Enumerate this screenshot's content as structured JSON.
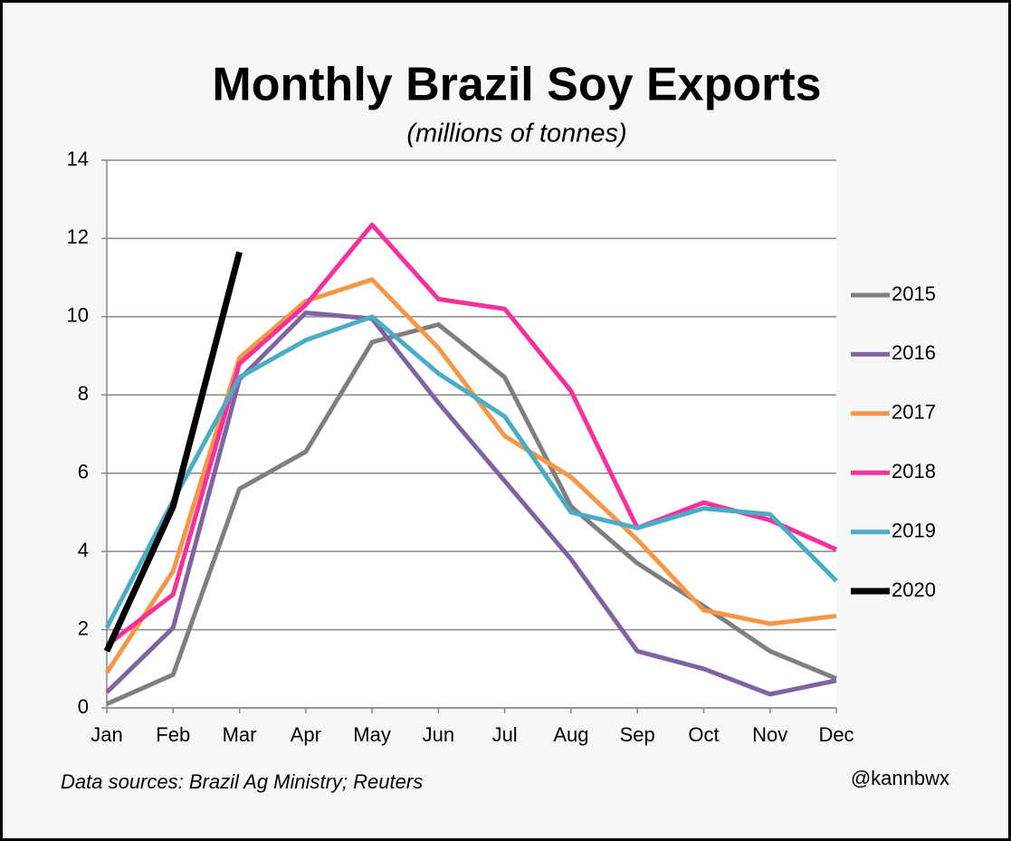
{
  "chart_data": {
    "type": "line",
    "title": "Monthly Brazil Soy Exports",
    "subtitle": "(millions of tonnes)",
    "source": "Data sources: Brazil Ag Ministry; Reuters",
    "credit": "@kannbwx",
    "categories": [
      "Jan",
      "Feb",
      "Mar",
      "Apr",
      "May",
      "Jun",
      "Jul",
      "Aug",
      "Sep",
      "Oct",
      "Nov",
      "Dec"
    ],
    "series": [
      {
        "name": "2015",
        "color": "#7f7f7f",
        "values": [
          0.1,
          0.85,
          5.6,
          6.55,
          9.35,
          9.8,
          8.45,
          5.15,
          3.7,
          2.6,
          1.45,
          0.75
        ]
      },
      {
        "name": "2016",
        "color": "#8064a2",
        "values": [
          0.4,
          2.05,
          8.4,
          10.1,
          9.95,
          7.8,
          5.8,
          3.8,
          1.45,
          1.0,
          0.35,
          0.7
        ]
      },
      {
        "name": "2017",
        "color": "#f79646",
        "values": [
          0.9,
          3.5,
          8.95,
          10.4,
          10.95,
          9.2,
          6.95,
          5.9,
          4.3,
          2.5,
          2.15,
          2.35
        ]
      },
      {
        "name": "2018",
        "color": "#f7319b",
        "values": [
          1.6,
          2.9,
          8.8,
          10.3,
          12.35,
          10.45,
          10.2,
          8.1,
          4.6,
          5.25,
          4.8,
          4.05
        ]
      },
      {
        "name": "2019",
        "color": "#4bacc6",
        "values": [
          2.05,
          5.3,
          8.45,
          9.4,
          10.0,
          8.55,
          7.45,
          5.0,
          4.6,
          5.1,
          4.95,
          3.25
        ]
      },
      {
        "name": "2020",
        "color": "#000000",
        "values": [
          1.45,
          5.15,
          11.65,
          null,
          null,
          null,
          null,
          null,
          null,
          null,
          null,
          null
        ]
      }
    ],
    "ylim": [
      0,
      14
    ],
    "yticks": [
      0,
      2,
      4,
      6,
      8,
      10,
      12,
      14
    ],
    "grid": true,
    "legend": "right"
  }
}
